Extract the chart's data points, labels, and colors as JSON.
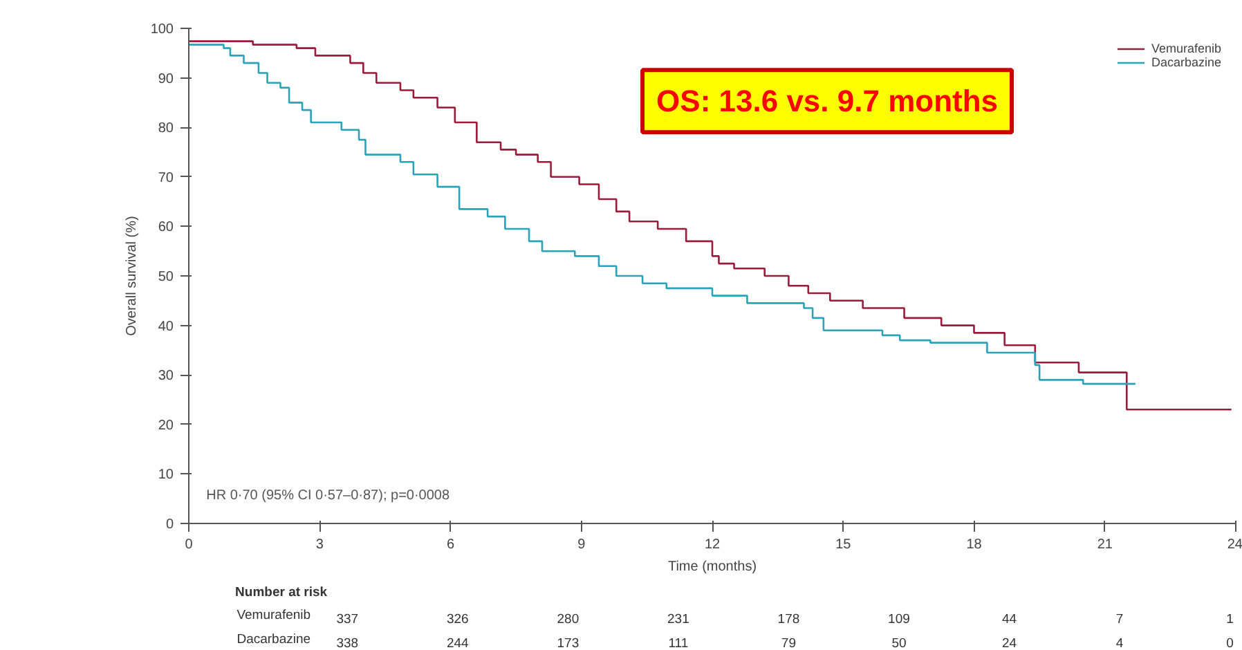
{
  "chart_data": {
    "type": "step",
    "xlabel": "Time (months)",
    "ylabel": "Overall survival (%)",
    "xlim": [
      0,
      24
    ],
    "xticks": [
      0,
      3,
      6,
      9,
      12,
      15,
      18,
      21,
      24
    ],
    "ylim": [
      0,
      100
    ],
    "yticks": [
      0,
      10,
      20,
      30,
      40,
      50,
      60,
      70,
      80,
      90,
      100
    ],
    "grid": false,
    "legend": "top right",
    "line_style": "solid",
    "marker": "none",
    "series": [
      {
        "name": "Vemurafenib",
        "color": "#9b1b3a",
        "x": [
          0,
          1.47,
          2.47,
          2.9,
          3.7,
          4.0,
          4.3,
          4.85,
          5.15,
          5.7,
          6.1,
          6.6,
          7.15,
          7.5,
          8.0,
          8.3,
          8.95,
          9.4,
          9.8,
          10.1,
          10.75,
          11.4,
          12.0,
          12.15,
          12.5,
          13.2,
          13.75,
          14.2,
          14.7,
          15.45,
          16.4,
          17.25,
          18.0,
          18.7,
          19.4,
          20.4,
          21.5,
          23.9
        ],
        "values": [
          97.4,
          96.7,
          96.0,
          94.5,
          93,
          91,
          89,
          87.5,
          86,
          84,
          81,
          77,
          75.5,
          74.5,
          73,
          70,
          68.5,
          65.5,
          63,
          61,
          59.5,
          57,
          54,
          52.5,
          51.5,
          50,
          48,
          46.5,
          45,
          43.5,
          41.5,
          40,
          38.5,
          36,
          32.5,
          30.5,
          23,
          23
        ]
      },
      {
        "name": "Dacarbazine",
        "color": "#2aa3b8",
        "x": [
          0,
          0.8,
          0.95,
          1.26,
          1.6,
          1.8,
          2.1,
          2.3,
          2.6,
          2.8,
          3.5,
          3.9,
          4.05,
          4.85,
          5.15,
          5.7,
          6.2,
          6.85,
          7.25,
          7.8,
          8.1,
          8.85,
          9.4,
          9.8,
          10.4,
          10.95,
          12.0,
          12.8,
          14.1,
          14.3,
          14.55,
          15.9,
          16.3,
          17.0,
          18.3,
          19.4,
          19.5,
          20.5,
          21.7
        ],
        "values": [
          96.7,
          96,
          94.5,
          93,
          91,
          89,
          88,
          85,
          83.5,
          81,
          79.5,
          77.5,
          74.5,
          73,
          70.5,
          68,
          63.5,
          62,
          59.5,
          57,
          55,
          54,
          52,
          50,
          48.5,
          47.5,
          46,
          44.5,
          43.5,
          41.5,
          39,
          38,
          37,
          36.5,
          34.5,
          32,
          29,
          28.2,
          28.2
        ]
      }
    ],
    "annotations": [
      "HR 0·70 (95% CI 0·57–0·87); p=0·0008",
      "OS: 13.6 vs. 9.7 months",
      "Number at risk",
      "Vemurafenib",
      "337",
      "326",
      "280",
      "231",
      "178",
      "109",
      "44",
      "7",
      "1",
      "Dacarbazine",
      "338",
      "244",
      "173",
      "111",
      "79",
      "50",
      "24",
      "4",
      "0"
    ]
  }
}
